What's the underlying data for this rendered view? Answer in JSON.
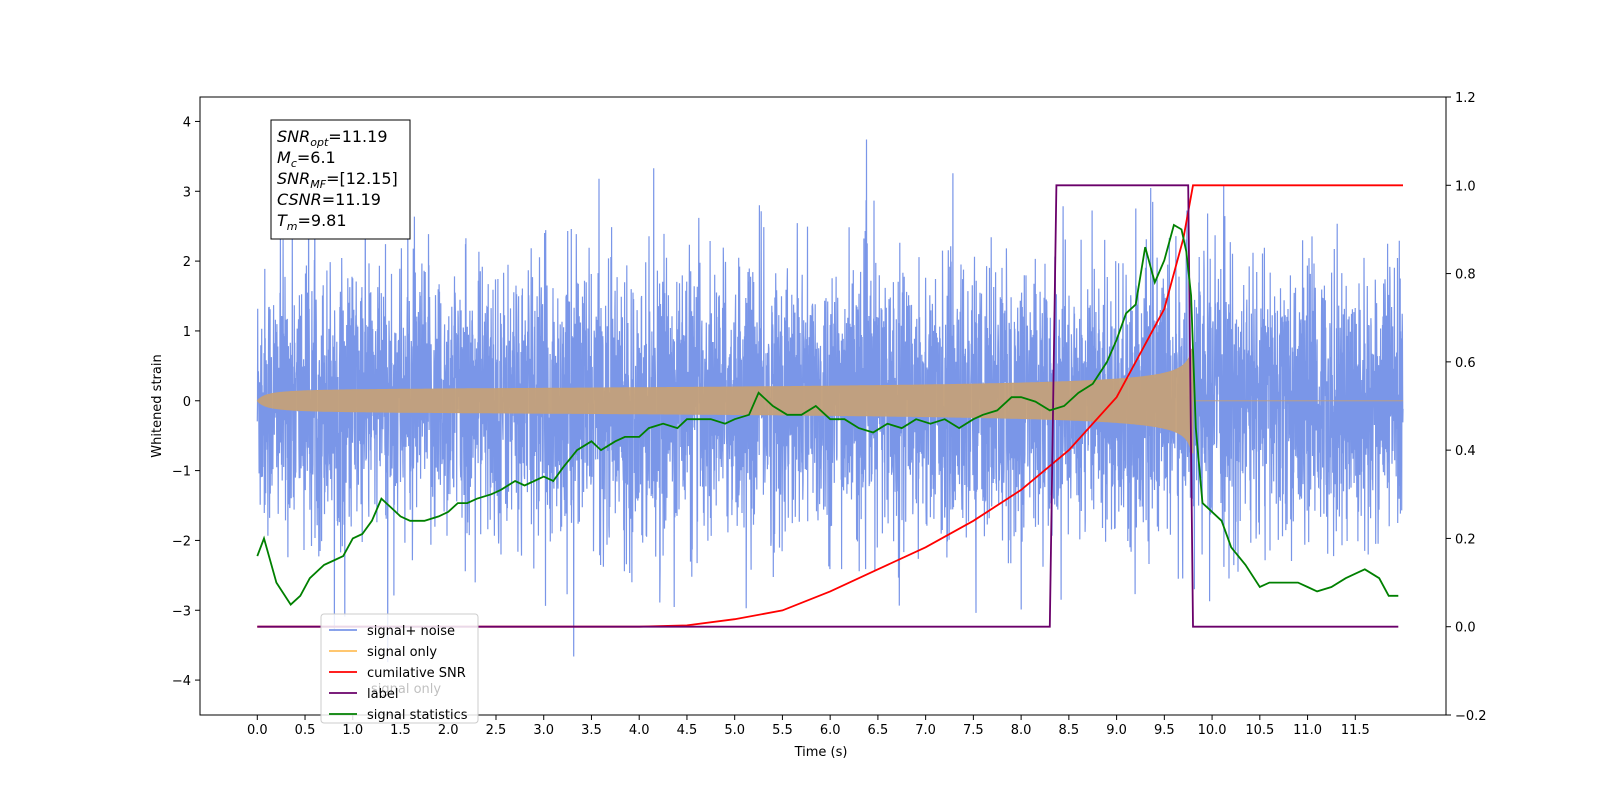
{
  "chart_data": {
    "type": "line",
    "xlabel": "Time (s)",
    "ylabel": "Whitened strain",
    "xlim": [
      -0.6,
      12.45
    ],
    "ylim": [
      -4.5,
      4.35
    ],
    "y2lim": [
      -0.2,
      1.2
    ],
    "x_ticks": [
      "0.0",
      "0.5",
      "1.0",
      "1.5",
      "2.0",
      "2.5",
      "3.0",
      "3.5",
      "4.0",
      "4.5",
      "5.0",
      "5.5",
      "6.0",
      "6.5",
      "7.0",
      "7.5",
      "8.0",
      "8.5",
      "9.0",
      "9.5",
      "10.0",
      "10.5",
      "11.0",
      "11.5"
    ],
    "y_ticks": [
      "4",
      "3",
      "2",
      "1",
      "0",
      "−1",
      "−2",
      "−3",
      "−4"
    ],
    "y2_ticks": [
      "1.2",
      "1.0",
      "0.8",
      "0.6",
      "0.4",
      "0.2",
      "0.0",
      "−0.2"
    ],
    "grid": false,
    "legend_position": "lower-left",
    "legend": [
      "signal+ noise",
      "signal only",
      "cumilative SNR",
      "label",
      "signal statistics"
    ],
    "occluded_label": "signal only",
    "annotation": {
      "lines": [
        {
          "base": "SNR",
          "sub": "opt",
          "value": "=11.19"
        },
        {
          "base": "M",
          "sub": "c",
          "value": "=6.1"
        },
        {
          "base": "SNR",
          "sub": "MF",
          "value": "=[12.15]"
        },
        {
          "base": "CSNR",
          "sub": "",
          "value": "=11.19"
        },
        {
          "base": "T",
          "sub": "m",
          "value": "=9.81"
        }
      ]
    },
    "series": [
      {
        "name": "signal+ noise",
        "axis": "left",
        "color": "#7a96e8",
        "approx_sigma": 0.95,
        "t_start": 0.0,
        "t_end": 12.0
      },
      {
        "name": "signal only",
        "axis": "left",
        "color": "#c4a07a",
        "t_start": 0.0,
        "t_end": 9.8,
        "t_merge": 9.81,
        "peak_amplitude": 0.75
      },
      {
        "name": "cumilative SNR",
        "axis": "right",
        "color": "#ff0000",
        "x": [
          0.0,
          4.0,
          4.5,
          5.0,
          5.5,
          6.0,
          6.5,
          7.0,
          7.5,
          8.0,
          8.5,
          9.0,
          9.5,
          9.7,
          9.8,
          12.0
        ],
        "y": [
          0.0,
          0.0,
          0.003,
          0.017,
          0.037,
          0.08,
          0.13,
          0.18,
          0.24,
          0.31,
          0.4,
          0.52,
          0.72,
          0.88,
          1.0,
          1.0
        ]
      },
      {
        "name": "label",
        "axis": "right",
        "color": "#6a006a",
        "x": [
          0.0,
          8.3,
          8.37,
          9.75,
          9.8,
          11.95
        ],
        "y": [
          0.0,
          0.0,
          1.0,
          1.0,
          0.0,
          0.0
        ]
      },
      {
        "name": "signal statistics",
        "axis": "right",
        "color": "#008000",
        "x": [
          0.0,
          0.07,
          0.2,
          0.35,
          0.45,
          0.55,
          0.7,
          0.8,
          0.9,
          1.0,
          1.1,
          1.2,
          1.3,
          1.4,
          1.5,
          1.6,
          1.75,
          1.9,
          2.0,
          2.1,
          2.2,
          2.3,
          2.45,
          2.55,
          2.7,
          2.8,
          2.9,
          3.0,
          3.1,
          3.2,
          3.35,
          3.5,
          3.6,
          3.75,
          3.85,
          4.0,
          4.1,
          4.25,
          4.4,
          4.5,
          4.6,
          4.75,
          4.9,
          5.0,
          5.15,
          5.25,
          5.4,
          5.55,
          5.7,
          5.85,
          6.0,
          6.15,
          6.3,
          6.45,
          6.6,
          6.75,
          6.9,
          7.05,
          7.2,
          7.35,
          7.5,
          7.6,
          7.75,
          7.9,
          8.0,
          8.15,
          8.3,
          8.45,
          8.6,
          8.75,
          8.9,
          9.0,
          9.1,
          9.2,
          9.3,
          9.4,
          9.5,
          9.6,
          9.68,
          9.73,
          9.78,
          9.83,
          9.9,
          10.0,
          10.1,
          10.2,
          10.35,
          10.5,
          10.6,
          10.75,
          10.9,
          11.0,
          11.1,
          11.25,
          11.4,
          11.5,
          11.6,
          11.75,
          11.85,
          11.95
        ],
        "y": [
          0.16,
          0.2,
          0.1,
          0.05,
          0.07,
          0.11,
          0.14,
          0.15,
          0.16,
          0.2,
          0.21,
          0.24,
          0.29,
          0.27,
          0.25,
          0.24,
          0.24,
          0.25,
          0.26,
          0.28,
          0.28,
          0.29,
          0.3,
          0.31,
          0.33,
          0.32,
          0.33,
          0.34,
          0.33,
          0.36,
          0.4,
          0.42,
          0.4,
          0.42,
          0.43,
          0.43,
          0.45,
          0.46,
          0.45,
          0.47,
          0.47,
          0.47,
          0.46,
          0.47,
          0.48,
          0.53,
          0.5,
          0.48,
          0.48,
          0.5,
          0.47,
          0.47,
          0.45,
          0.44,
          0.46,
          0.45,
          0.47,
          0.46,
          0.47,
          0.45,
          0.47,
          0.48,
          0.49,
          0.52,
          0.52,
          0.51,
          0.49,
          0.5,
          0.53,
          0.55,
          0.6,
          0.65,
          0.71,
          0.73,
          0.86,
          0.78,
          0.83,
          0.91,
          0.9,
          0.85,
          0.75,
          0.45,
          0.28,
          0.26,
          0.24,
          0.18,
          0.14,
          0.09,
          0.1,
          0.1,
          0.1,
          0.09,
          0.08,
          0.09,
          0.11,
          0.12,
          0.13,
          0.11,
          0.07,
          0.07
        ]
      }
    ]
  }
}
